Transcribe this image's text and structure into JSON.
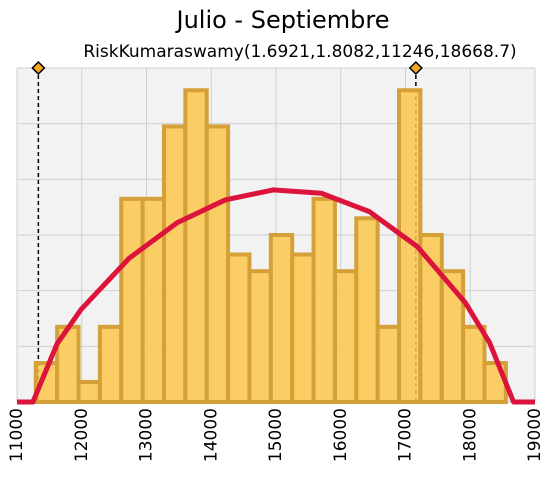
{
  "chart_data": {
    "type": "histogram",
    "title": "Julio - Septiembre",
    "subtitle": "RiskKumaraswamy(1.6921,1.8082,11246,18668.7)",
    "bins": [
      11290,
      11620,
      11950,
      12280,
      12610,
      12940,
      13270,
      13600,
      13930,
      14260,
      14590,
      14920,
      15250,
      15580,
      15910,
      16240,
      16570,
      16900,
      17230,
      17560,
      17890,
      18220,
      18550
    ],
    "values": [
      0.7,
      1.35,
      0.36,
      1.35,
      3.65,
      3.65,
      4.95,
      5.6,
      4.95,
      2.65,
      2.35,
      3.0,
      2.65,
      3.65,
      2.35,
      3.3,
      1.35,
      5.6,
      3.0,
      2.35,
      1.35,
      0.7
    ],
    "color": "#fdc84c",
    "edge_color": "#d4a037",
    "curve": {
      "color": "#dc143c",
      "x": [
        11000,
        11246,
        11617,
        11988,
        12730,
        13473,
        14215,
        14957,
        15700,
        16442,
        17184,
        17926,
        18297,
        18669,
        19000
      ],
      "values": [
        0,
        0,
        1.04,
        1.66,
        2.58,
        3.22,
        3.63,
        3.81,
        3.75,
        3.42,
        2.79,
        1.78,
        1.07,
        0,
        0
      ]
    },
    "markers": [
      11330,
      17160
    ],
    "xlim": [
      11000,
      19000
    ],
    "xticks": [
      11000,
      12000,
      13000,
      14000,
      15000,
      16000,
      17000,
      18000,
      19000
    ],
    "ylim": [
      0,
      6
    ],
    "yticks": [
      0,
      1,
      2,
      3,
      4,
      5,
      6
    ],
    "grid": true
  }
}
